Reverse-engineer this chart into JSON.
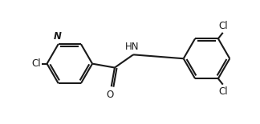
{
  "background": "#ffffff",
  "line_color": "#1a1a1a",
  "text_color": "#1a1a1a",
  "bond_lw": 1.5,
  "font_size": 8.5,
  "atoms": {
    "N_label": "N",
    "HN_label": "HN",
    "O_label": "O",
    "Cl1_label": "Cl",
    "Cl2_label": "Cl",
    "Cl3_label": "Cl"
  },
  "figsize": [
    3.24,
    1.55
  ],
  "dpi": 100,
  "xlim": [
    -1.3,
    1.55
  ],
  "ylim": [
    -0.72,
    0.72
  ]
}
